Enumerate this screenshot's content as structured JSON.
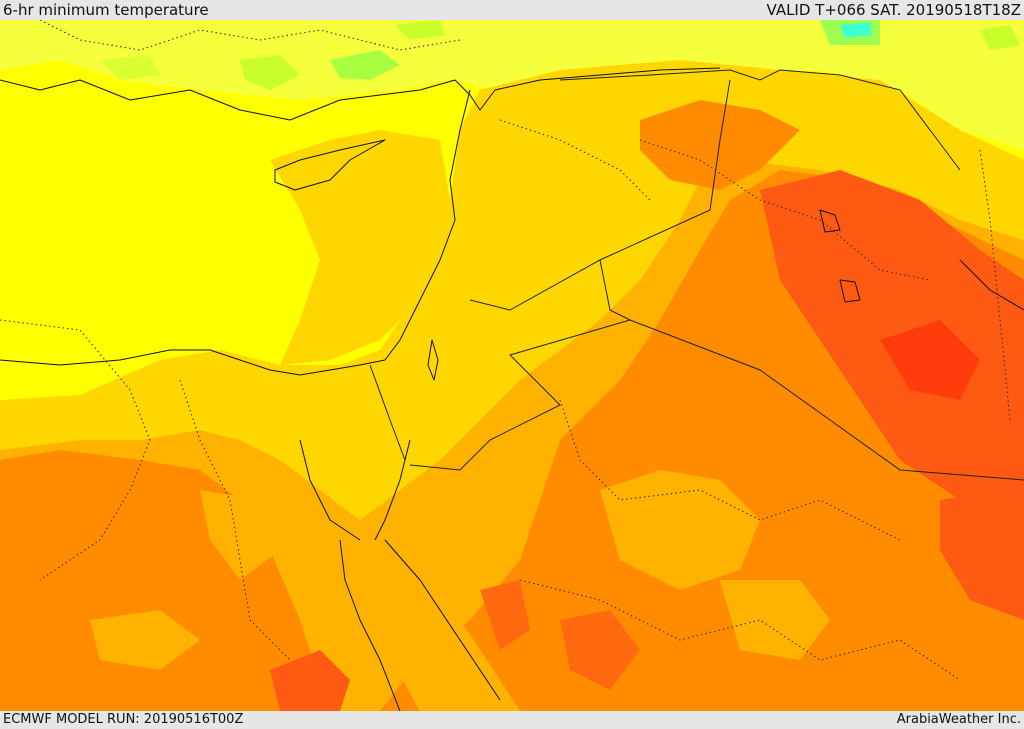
{
  "header": {
    "title": "6-hr minimum temperature",
    "valid": "VALID T+066 SAT. 20190518T18Z"
  },
  "footer": {
    "model_run": "ECMWF MODEL RUN: 20190516T00Z",
    "credit": "ArabiaWeather Inc."
  },
  "palette": {
    "pale_yellow": "#f5ff3c",
    "yellow": "#ffff00",
    "gold": "#ffd700",
    "amber": "#ffb300",
    "orange": "#ff8c00",
    "red_orange": "#ff5a14",
    "green": "#c8ff2a",
    "cyan": "#40ffd0"
  }
}
